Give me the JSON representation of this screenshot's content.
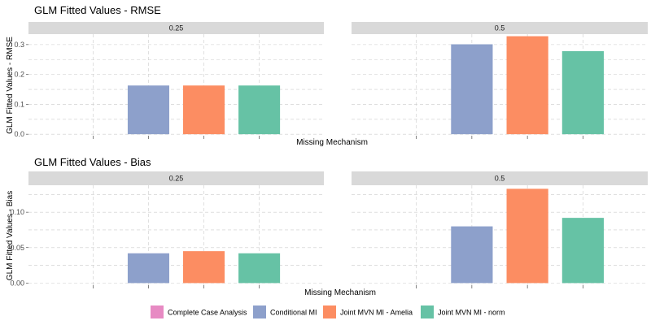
{
  "chart_data": [
    {
      "type": "bar",
      "title": "GLM Fitted Values - RMSE",
      "xlabel": "Missing Mechanism",
      "ylabel": "GLM Fitted Values - RMSE",
      "y_ticks": [
        "0.0",
        "0.1",
        "0.2",
        "0.3"
      ],
      "ylim": [
        -0.005,
        0.335
      ],
      "grid": true,
      "facets": [
        {
          "label": "0.25",
          "series": [
            {
              "name": "Complete Case Analysis",
              "value": 0
            },
            {
              "name": "Conditional MI",
              "value": 0.163
            },
            {
              "name": "Joint MVN MI - Amelia",
              "value": 0.163
            },
            {
              "name": "Joint MVN MI - norm",
              "value": 0.163
            }
          ]
        },
        {
          "label": "0.5",
          "series": [
            {
              "name": "Complete Case Analysis",
              "value": 0
            },
            {
              "name": "Conditional MI",
              "value": 0.301
            },
            {
              "name": "Joint MVN MI - Amelia",
              "value": 0.328
            },
            {
              "name": "Joint MVN MI - norm",
              "value": 0.278
            }
          ]
        }
      ]
    },
    {
      "type": "bar",
      "title": "GLM Fitted Values - Bias",
      "xlabel": "Missing Mechanism",
      "ylabel": "GLM Fitted Values - Bias",
      "y_ticks": [
        "0.00",
        "0.05",
        "0.10"
      ],
      "ylim": [
        -0.003,
        0.138
      ],
      "grid": true,
      "facets": [
        {
          "label": "0.25",
          "series": [
            {
              "name": "Complete Case Analysis",
              "value": 0
            },
            {
              "name": "Conditional MI",
              "value": 0.042
            },
            {
              "name": "Joint MVN MI - Amelia",
              "value": 0.045
            },
            {
              "name": "Joint MVN MI - norm",
              "value": 0.042
            }
          ]
        },
        {
          "label": "0.5",
          "series": [
            {
              "name": "Complete Case Analysis",
              "value": 0
            },
            {
              "name": "Conditional MI",
              "value": 0.08
            },
            {
              "name": "Joint MVN MI - Amelia",
              "value": 0.133
            },
            {
              "name": "Joint MVN MI - norm",
              "value": 0.092
            }
          ]
        }
      ]
    }
  ],
  "legend": {
    "placement": "bottom",
    "items": [
      {
        "label": "Complete Case Analysis",
        "color": "#e78ac3"
      },
      {
        "label": "Conditional MI",
        "color": "#8da0cb"
      },
      {
        "label": "Joint MVN MI - Amelia",
        "color": "#fc8d62"
      },
      {
        "label": "Joint MVN MI - norm",
        "color": "#66c2a5"
      }
    ]
  },
  "colors": {
    "strip": "#d9d9d9",
    "grid": "#cccccc"
  }
}
